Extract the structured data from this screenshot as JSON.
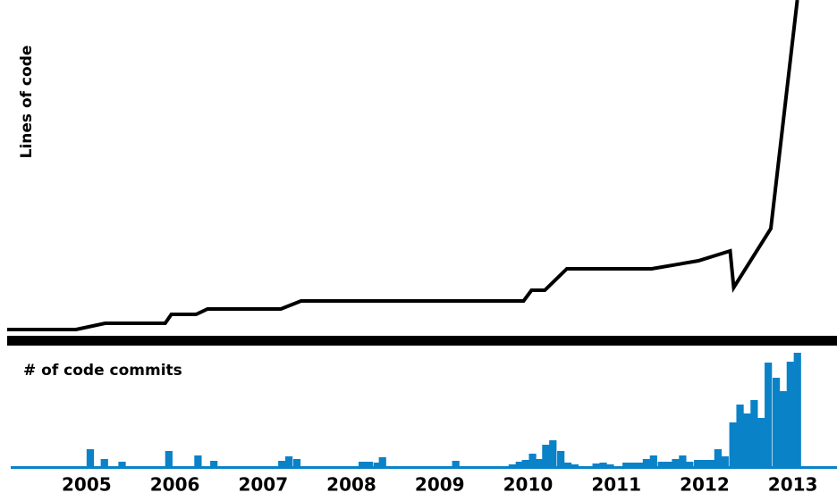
{
  "chart_data": [
    {
      "type": "line",
      "ylabel": "Lines of code",
      "color": "#000000",
      "x": [
        2004.1,
        2004.88,
        2005.21,
        2005.89,
        2005.96,
        2006.24,
        2006.37,
        2007.2,
        2007.43,
        2009.95,
        2010.04,
        2010.19,
        2010.44,
        2011.4,
        2011.93,
        2012.29,
        2012.33,
        2012.75,
        2013.05
      ],
      "values": [
        1,
        1,
        8,
        8,
        18,
        18,
        24,
        24,
        33,
        33,
        45,
        45,
        69,
        69,
        78,
        89,
        48,
        114,
        370
      ],
      "xlim": [
        2004.1,
        2013.5
      ],
      "ylim": [
        0,
        370
      ]
    },
    {
      "type": "bar",
      "title": "# of code commits",
      "color": "#0a82c8",
      "x": [
        2005.0,
        2005.16,
        2005.36,
        2005.89,
        2006.22,
        2006.4,
        2007.17,
        2007.25,
        2007.34,
        2008.08,
        2008.16,
        2008.25,
        2008.31,
        2009.14,
        2009.78,
        2009.86,
        2009.93,
        2010.01,
        2010.09,
        2010.16,
        2010.24,
        2010.33,
        2010.41,
        2010.49,
        2010.73,
        2010.81,
        2010.89,
        2011.07,
        2011.15,
        2011.22,
        2011.3,
        2011.38,
        2011.47,
        2011.55,
        2011.63,
        2011.71,
        2011.79,
        2011.88,
        2011.96,
        2012.04,
        2012.11,
        2012.19,
        2012.28,
        2012.36,
        2012.44,
        2012.52,
        2012.6,
        2012.68,
        2012.77,
        2012.85,
        2012.93,
        2013.01
      ],
      "values": [
        20,
        9,
        6,
        18,
        13,
        7,
        7,
        12,
        9,
        6,
        6,
        5,
        11,
        7,
        3,
        6,
        8,
        15,
        9,
        25,
        30,
        18,
        5,
        3,
        4,
        5,
        3,
        5,
        5,
        5,
        9,
        13,
        6,
        6,
        9,
        13,
        6,
        8,
        8,
        8,
        20,
        12,
        50,
        70,
        60,
        75,
        55,
        117,
        100,
        85,
        118,
        128
      ],
      "xlim": [
        2004.1,
        2013.5
      ],
      "ylim": [
        0,
        130
      ],
      "xticks": [
        2005,
        2006,
        2007,
        2008,
        2009,
        2010,
        2011,
        2012,
        2013
      ]
    }
  ]
}
